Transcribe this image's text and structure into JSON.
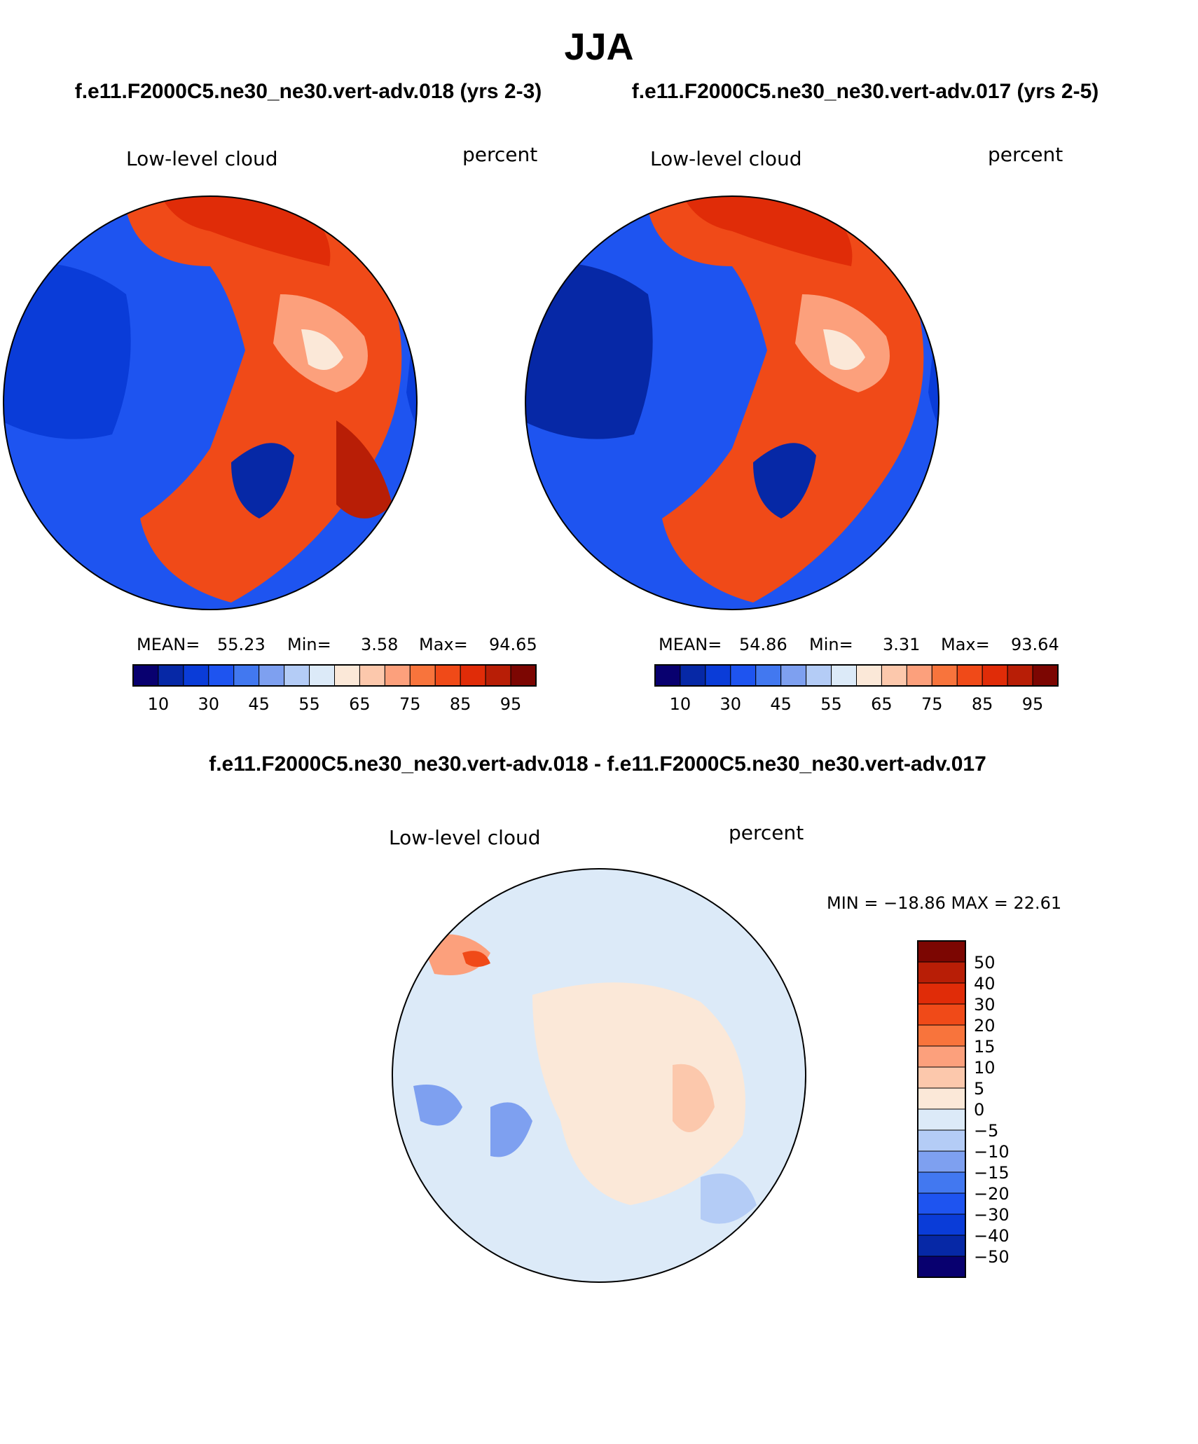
{
  "figure": {
    "title": "JJA",
    "left_case": "f.e11.F2000C5.ne30_ne30.vert-adv.018 (yrs 2-3)",
    "right_case": "f.e11.F2000C5.ne30_ne30.vert-adv.017 (yrs 2-5)",
    "diff_title": "f.e11.F2000C5.ne30_ne30.vert-adv.018 - f.e11.F2000C5.ne30_ne30.vert-adv.017"
  },
  "colors": {
    "abs_scale": [
      "#08006f",
      "#0628a6",
      "#0a3cd8",
      "#1e54f0",
      "#4278f0",
      "#7ea0f0",
      "#b4ccf6",
      "#dceaf8",
      "#fbe8d8",
      "#fcc8ac",
      "#fca07c",
      "#f8743c",
      "#f04a18",
      "#e02c08",
      "#b81e06",
      "#7c0602"
    ],
    "diff_scale": [
      "#08006f",
      "#0628a6",
      "#0a3cd8",
      "#1e54f0",
      "#4278f0",
      "#7ea0f0",
      "#b4ccf6",
      "#dceaf8",
      "#fbe8d8",
      "#fcc8ac",
      "#fca07c",
      "#f8743c",
      "#f04a18",
      "#e02c08",
      "#b81e06",
      "#7c0602"
    ]
  },
  "chart_data": [
    {
      "type": "heatmap",
      "panel": "top-left",
      "projection": "north polar stereographic",
      "variable": "Low-level cloud",
      "units": "percent",
      "stats": {
        "mean_label": "MEAN=",
        "mean": "55.23",
        "min_label": "Min=",
        "min": "3.58",
        "max_label": "Max=",
        "max": "94.65"
      },
      "contour_levels": [
        5,
        10,
        20,
        30,
        40,
        45,
        50,
        55,
        60,
        65,
        70,
        75,
        80,
        85,
        90,
        95
      ],
      "colorbar_tick_labels": [
        "10",
        "30",
        "45",
        "55",
        "65",
        "75",
        "85",
        "95"
      ],
      "value_range": [
        3.58,
        94.65
      ]
    },
    {
      "type": "heatmap",
      "panel": "top-right",
      "projection": "north polar stereographic",
      "variable": "Low-level cloud",
      "units": "percent",
      "stats": {
        "mean_label": "MEAN=",
        "mean": "54.86",
        "min_label": "Min=",
        "min": "3.31",
        "max_label": "Max=",
        "max": "93.64"
      },
      "contour_levels": [
        5,
        10,
        20,
        30,
        40,
        45,
        50,
        55,
        60,
        65,
        70,
        75,
        80,
        85,
        90,
        95
      ],
      "colorbar_tick_labels": [
        "10",
        "30",
        "45",
        "55",
        "65",
        "75",
        "85",
        "95"
      ],
      "value_range": [
        3.31,
        93.64
      ]
    },
    {
      "type": "heatmap",
      "panel": "bottom-difference",
      "projection": "north polar stereographic",
      "variable": "Low-level cloud",
      "units": "percent",
      "stats": {
        "minmax_label": "MIN = −18.86  MAX =   22.61",
        "min": -18.86,
        "max": 22.61
      },
      "contour_levels": [
        -50,
        -40,
        -30,
        -20,
        -15,
        -10,
        -5,
        0,
        5,
        10,
        15,
        20,
        30,
        40,
        50
      ],
      "colorbar_tick_labels": [
        "50",
        "40",
        "30",
        "20",
        "15",
        "10",
        "5",
        "0",
        "−5",
        "−10",
        "−15",
        "−20",
        "−30",
        "−40",
        "−50"
      ],
      "value_range": [
        -18.86,
        22.61
      ]
    }
  ]
}
